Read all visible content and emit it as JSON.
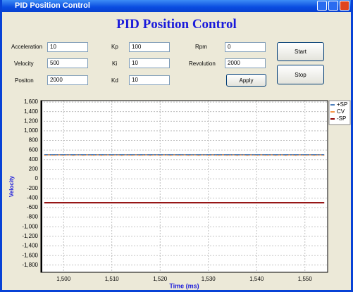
{
  "window": {
    "title": "PID Position Control"
  },
  "header": {
    "title": "PID Position Control"
  },
  "form": {
    "fields": [
      {
        "label": "Acceleration",
        "value": "10"
      },
      {
        "label": "Velocity",
        "value": "500"
      },
      {
        "label": "Positon",
        "value": "2000"
      },
      {
        "label": "Kp",
        "value": "100"
      },
      {
        "label": "Ki",
        "value": "10"
      },
      {
        "label": "Kd",
        "value": "10"
      },
      {
        "label": "Rpm",
        "value": "0"
      },
      {
        "label": "Revolution",
        "value": "2000"
      }
    ],
    "buttons": [
      "Start",
      "Stop",
      "Apply"
    ]
  },
  "chart_data": {
    "type": "line",
    "x_label": "Time (ms)",
    "y_label": "Velocity",
    "x": [
      1496,
      1497,
      1498,
      1499,
      1500,
      1501,
      1502,
      1503,
      1504,
      1505,
      1506,
      1507,
      1508,
      1509,
      1510,
      1511,
      1512,
      1513,
      1514,
      1515,
      1516,
      1517,
      1518,
      1519,
      1520,
      1521,
      1522,
      1523,
      1524,
      1525,
      1526,
      1527,
      1528,
      1529,
      1530,
      1531,
      1532,
      1533,
      1534,
      1535,
      1536,
      1537,
      1538,
      1539,
      1540,
      1541,
      1542,
      1543,
      1544,
      1545,
      1546,
      1547,
      1548,
      1549,
      1550,
      1551,
      1552,
      1553,
      1554
    ],
    "series": [
      {
        "name": "+SP",
        "color": "#4f81bd",
        "values": [
          500,
          500,
          500,
          500,
          500,
          500,
          500,
          500,
          500,
          500,
          500,
          500,
          500,
          500,
          500,
          500,
          500,
          500,
          500,
          500,
          500,
          500,
          500,
          500,
          500,
          500,
          500,
          500,
          500,
          500,
          500,
          500,
          500,
          500,
          500,
          500,
          500,
          500,
          500,
          500,
          500,
          500,
          500,
          500,
          500,
          500,
          500,
          500,
          500,
          500,
          500,
          500,
          500,
          500,
          500,
          500,
          500,
          500,
          500
        ]
      },
      {
        "name": "CV",
        "color": "#f79646",
        "values": [
          485,
          500,
          485,
          500,
          485,
          500,
          485,
          500,
          485,
          500,
          485,
          500,
          485,
          500,
          485,
          500,
          485,
          500,
          485,
          500,
          485,
          500,
          485,
          500,
          485,
          500,
          485,
          500,
          485,
          500,
          485,
          500,
          485,
          500,
          485,
          500,
          485,
          500,
          485,
          500,
          485,
          500,
          485,
          500,
          485,
          500,
          485,
          500,
          485,
          500,
          485,
          500,
          485,
          500,
          485,
          500,
          485,
          500,
          485
        ]
      },
      {
        "name": "-SP",
        "color": "#8b0000",
        "values": [
          -500,
          -500,
          -500,
          -500,
          -500,
          -500,
          -500,
          -500,
          -500,
          -500,
          -500,
          -500,
          -500,
          -500,
          -500,
          -500,
          -500,
          -500,
          -500,
          -500,
          -500,
          -500,
          -500,
          -500,
          -500,
          -500,
          -500,
          -500,
          -500,
          -500,
          -500,
          -500,
          -500,
          -500,
          -500,
          -500,
          -500,
          -500,
          -500,
          -500,
          -500,
          -500,
          -500,
          -500,
          -500,
          -500,
          -500,
          -500,
          -500,
          -500,
          -500,
          -500,
          -500,
          -500,
          -500,
          -500,
          -500,
          -500,
          -500
        ]
      }
    ],
    "xlim": [
      1495.3,
      1554.7
    ],
    "xticks": [
      {
        "value": 1500,
        "label": "1,500"
      },
      {
        "value": 1510,
        "label": "1,510"
      },
      {
        "value": 1520,
        "label": "1,520"
      },
      {
        "value": 1530,
        "label": "1,530"
      },
      {
        "value": 1540,
        "label": "1,540"
      },
      {
        "value": 1550,
        "label": "1,550"
      }
    ],
    "ylim": [
      -1950,
      1630
    ],
    "yticks": [
      {
        "value": 1600,
        "label": "1,600"
      },
      {
        "value": 1400,
        "label": "1,400"
      },
      {
        "value": 1200,
        "label": "1,200"
      },
      {
        "value": 1000,
        "label": "1,000"
      },
      800,
      600,
      400,
      200,
      0,
      -200,
      -400,
      -600,
      -800,
      {
        "value": -1000,
        "label": "-1,000"
      },
      {
        "value": -1200,
        "label": "-1,200"
      },
      {
        "value": -1400,
        "label": "-1,400"
      },
      {
        "value": -1600,
        "label": "-1,600"
      },
      {
        "value": -1800,
        "label": "-1,800"
      }
    ],
    "grid": true,
    "legend": "right"
  }
}
